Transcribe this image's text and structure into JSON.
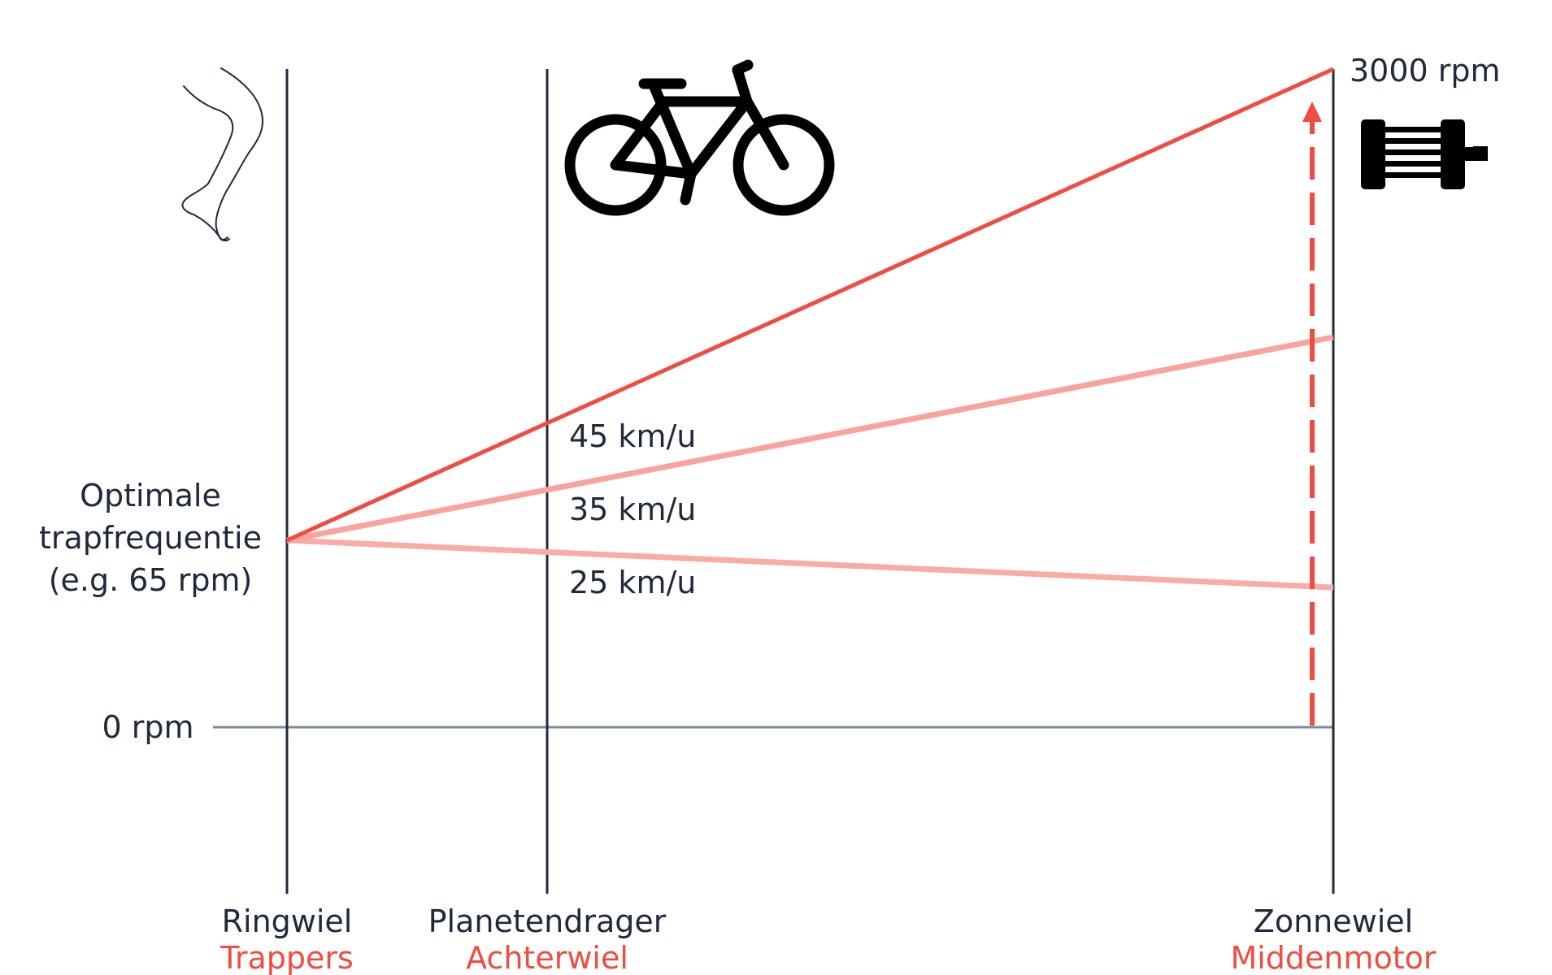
{
  "colors": {
    "ink": "#1f2a3c",
    "accent": "#f24b3f",
    "accent_light": "#f8a39d",
    "accent_lighter": "#f9aba5",
    "zero_line": "#7c8b99"
  },
  "icons": {
    "top_left": "leg-icon",
    "top_middle": "bicycle-icon",
    "top_right": "motor-icon"
  },
  "left_labels": {
    "cadence_line1": "Optimale",
    "cadence_line2": "trapfrequentie",
    "cadence_line3": "(e.g. 65 rpm)",
    "zero": "0 rpm"
  },
  "top_right_label": "3000 rpm",
  "speed_lines": [
    {
      "label": "45 km/u",
      "kind": "strong"
    },
    {
      "label": "35 km/u",
      "kind": "light"
    },
    {
      "label": "25 km/u",
      "kind": "light"
    }
  ],
  "axes": [
    {
      "name": "Ringwiel",
      "role": "Trappers"
    },
    {
      "name": "Planetendrager",
      "role": "Achterwiel"
    },
    {
      "name": "Zonnewiel",
      "role": "Middenmotor"
    }
  ]
}
